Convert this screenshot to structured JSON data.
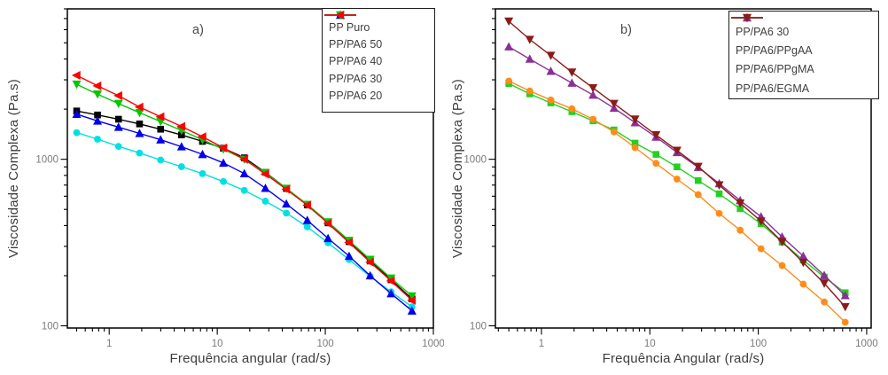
{
  "figure": {
    "background": "#ffffff"
  },
  "chart_data": [
    {
      "panel_label": "a)",
      "type": "line",
      "xscale": "log",
      "yscale": "log",
      "xlabel": "Frequência angular (rad/s)",
      "ylabel": "Viscosidade Complexa (Pa.s)",
      "xlim": [
        0.41,
        1000
      ],
      "ylim": [
        97,
        8000
      ],
      "grid": false,
      "legend_position": "top-right",
      "x_ticks": {
        "major": [
          1,
          10,
          100,
          1000
        ],
        "labels": [
          "1",
          "10",
          "100",
          "1000"
        ]
      },
      "y_ticks": {
        "major": [
          100,
          1000
        ],
        "labels": [
          "100",
          "1000"
        ]
      },
      "x": [
        0.5,
        0.78,
        1.22,
        1.91,
        2.99,
        4.67,
        7.3,
        11.4,
        17.8,
        27.9,
        43.6,
        68.1,
        106,
        166,
        260,
        406,
        634
      ],
      "series": [
        {
          "name": "PP Puro",
          "color": "#000000",
          "marker": "square",
          "values": [
            1950,
            1845,
            1740,
            1630,
            1515,
            1400,
            1280,
            1165,
            1020,
            835,
            668,
            532,
            415,
            320,
            245,
            189,
            145
          ]
        },
        {
          "name": "PP/PA6 50",
          "color": "#00dfe2",
          "marker": "circle",
          "values": [
            1445,
            1320,
            1195,
            1090,
            990,
            903,
            820,
            735,
            650,
            560,
            475,
            393,
            315,
            250,
            198,
            160,
            130
          ]
        },
        {
          "name": "PP/PA6 40",
          "color": "#0000ee",
          "marker": "triangle-up",
          "values": [
            1865,
            1700,
            1560,
            1430,
            1310,
            1190,
            1070,
            950,
            820,
            670,
            540,
            430,
            335,
            262,
            200,
            156,
            123
          ]
        },
        {
          "name": "PP/PA6 30",
          "color": "#00c800",
          "marker": "triangle-down",
          "values": [
            2820,
            2460,
            2160,
            1905,
            1685,
            1490,
            1310,
            1150,
            1000,
            830,
            668,
            535,
            420,
            325,
            250,
            193,
            151
          ]
        },
        {
          "name": "PP/PA6 20",
          "color": "#ff0000",
          "marker": "triangle-left",
          "values": [
            3190,
            2760,
            2410,
            2060,
            1800,
            1575,
            1365,
            1170,
            1000,
            815,
            660,
            530,
            412,
            316,
            241,
            186,
            142
          ]
        }
      ]
    },
    {
      "panel_label": "b)",
      "type": "line",
      "xscale": "log",
      "yscale": "log",
      "xlabel": "Frequência Angular (rad/s)",
      "ylabel": "Viscosidade Complexa (Pa.s)",
      "xlim": [
        0.376,
        1100
      ],
      "ylim": [
        97,
        8000
      ],
      "grid": false,
      "legend_position": "top-right",
      "x_ticks": {
        "major": [
          1,
          10,
          100,
          1000
        ],
        "labels": [
          "1",
          "10",
          "100",
          "1000"
        ]
      },
      "y_ticks": {
        "major": [
          100,
          1000
        ],
        "labels": [
          "100",
          "1000"
        ]
      },
      "x": [
        0.5,
        0.78,
        1.22,
        1.91,
        2.99,
        4.67,
        7.3,
        11.4,
        17.8,
        27.9,
        43.6,
        68.1,
        106,
        166,
        260,
        406,
        634
      ],
      "series": [
        {
          "name": "PP/PA6 30",
          "color": "#22d122",
          "marker": "square",
          "values": [
            2850,
            2470,
            2180,
            1930,
            1700,
            1500,
            1250,
            1070,
            900,
            745,
            620,
            505,
            410,
            318,
            248,
            196,
            158
          ]
        },
        {
          "name": "PP/PA6/PPgAA",
          "color": "#ff8c1a",
          "marker": "circle",
          "values": [
            2950,
            2570,
            2270,
            2010,
            1740,
            1460,
            1175,
            945,
            760,
            613,
            473,
            375,
            290,
            230,
            178,
            139,
            105
          ]
        },
        {
          "name": "PP/PA6/PPgMA",
          "color": "#8b2f97",
          "marker": "triangle-up",
          "values": [
            4740,
            4000,
            3380,
            2870,
            2430,
            2030,
            1660,
            1360,
            1100,
            895,
            715,
            565,
            452,
            342,
            262,
            201,
            152
          ]
        },
        {
          "name": "PP/PA6/EGMA",
          "color": "#8b1a1a",
          "marker": "triangle-down",
          "values": [
            6740,
            5240,
            4200,
            3330,
            2680,
            2160,
            1740,
            1400,
            1130,
            905,
            700,
            545,
            425,
            320,
            240,
            180,
            130
          ]
        }
      ]
    }
  ]
}
